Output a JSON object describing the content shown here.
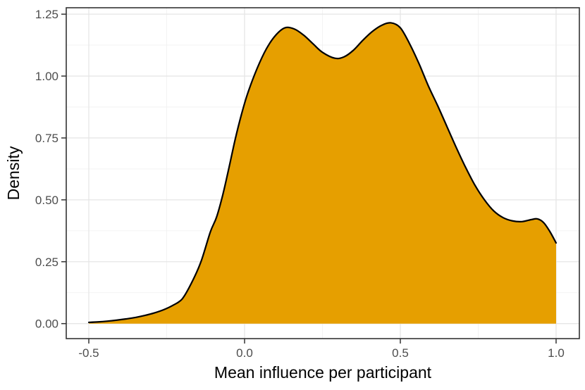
{
  "figure": {
    "background": "#FFFFFF"
  },
  "chart_data": {
    "type": "area",
    "variant": "kernel-density-curve",
    "title": "",
    "xlabel": "Mean influence per participant",
    "ylabel": "Density",
    "x_axis": {
      "data_range": [
        -0.5,
        1.0
      ],
      "major_ticks": [
        -0.5,
        0.0,
        0.5,
        1.0
      ],
      "major_tick_labels": [
        "-0.5",
        "0.0",
        "0.5",
        "1.0"
      ],
      "minor_ticks": [
        -0.25,
        0.25,
        0.75
      ]
    },
    "y_axis": {
      "data_range": [
        0,
        1.25
      ],
      "major_ticks": [
        0.0,
        0.25,
        0.5,
        0.75,
        1.0,
        1.25
      ],
      "major_tick_labels": [
        "0.00",
        "0.25",
        "0.50",
        "0.75",
        "1.00",
        "1.25"
      ],
      "minor_ticks": [
        0.125,
        0.375,
        0.625,
        0.875,
        1.125
      ]
    },
    "grid": {
      "major": true,
      "minor": true
    },
    "legend": "none",
    "series": [
      {
        "name": "density",
        "fill_color": "#E69F00",
        "line_color": "#000000",
        "baseline": 0,
        "points": [
          [
            -0.5,
            0.005
          ],
          [
            -0.47,
            0.007
          ],
          [
            -0.44,
            0.01
          ],
          [
            -0.41,
            0.014
          ],
          [
            -0.38,
            0.019
          ],
          [
            -0.35,
            0.025
          ],
          [
            -0.32,
            0.033
          ],
          [
            -0.29,
            0.043
          ],
          [
            -0.26,
            0.056
          ],
          [
            -0.23,
            0.074
          ],
          [
            -0.2,
            0.1
          ],
          [
            -0.17,
            0.165
          ],
          [
            -0.14,
            0.25
          ],
          [
            -0.11,
            0.37
          ],
          [
            -0.09,
            0.43
          ],
          [
            -0.07,
            0.52
          ],
          [
            -0.05,
            0.63
          ],
          [
            -0.03,
            0.745
          ],
          [
            -0.01,
            0.845
          ],
          [
            0.01,
            0.93
          ],
          [
            0.04,
            1.03
          ],
          [
            0.07,
            1.11
          ],
          [
            0.1,
            1.165
          ],
          [
            0.13,
            1.195
          ],
          [
            0.16,
            1.19
          ],
          [
            0.19,
            1.165
          ],
          [
            0.22,
            1.13
          ],
          [
            0.25,
            1.096
          ],
          [
            0.29,
            1.072
          ],
          [
            0.32,
            1.078
          ],
          [
            0.35,
            1.105
          ],
          [
            0.38,
            1.145
          ],
          [
            0.41,
            1.18
          ],
          [
            0.44,
            1.205
          ],
          [
            0.47,
            1.215
          ],
          [
            0.5,
            1.195
          ],
          [
            0.53,
            1.13
          ],
          [
            0.56,
            1.05
          ],
          [
            0.59,
            0.96
          ],
          [
            0.62,
            0.88
          ],
          [
            0.65,
            0.795
          ],
          [
            0.68,
            0.71
          ],
          [
            0.71,
            0.63
          ],
          [
            0.74,
            0.558
          ],
          [
            0.77,
            0.5
          ],
          [
            0.8,
            0.455
          ],
          [
            0.83,
            0.428
          ],
          [
            0.86,
            0.415
          ],
          [
            0.89,
            0.412
          ],
          [
            0.92,
            0.42
          ],
          [
            0.94,
            0.423
          ],
          [
            0.96,
            0.408
          ],
          [
            0.98,
            0.372
          ],
          [
            1.0,
            0.326
          ]
        ]
      }
    ],
    "colors": {
      "grid_major": "#E6E6E6",
      "grid_minor": "#F2F2F2",
      "panel_border": "#333333",
      "tick_mark": "#333333",
      "tick_label": "#4D4D4D",
      "axis_title": "#000000",
      "panel_background": "#FFFFFF"
    }
  }
}
